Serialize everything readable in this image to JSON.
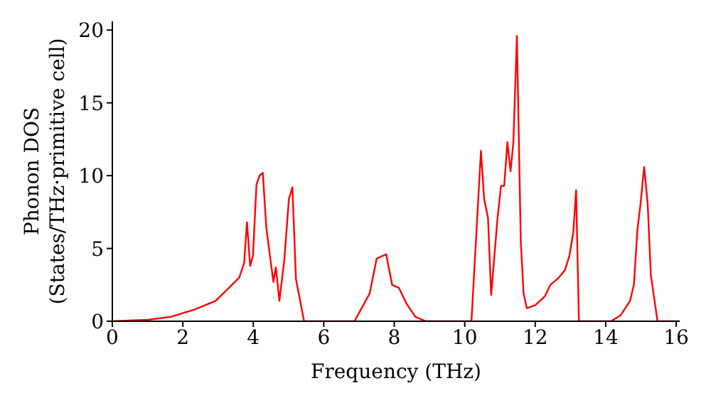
{
  "chart_data": {
    "type": "line",
    "xlabel": "Frequency (THz)",
    "ylabel": "Phonon DOS\n(States/THz·primitive cell)",
    "x": [
      0,
      1,
      1.65,
      2.33,
      2.93,
      3.27,
      3.6,
      3.74,
      3.82,
      3.91,
      3.99,
      4.09,
      4.18,
      4.27,
      4.37,
      4.57,
      4.64,
      4.74,
      4.88,
      5.01,
      5.11,
      5.21,
      5.44,
      6.87,
      7.3,
      7.5,
      7.77,
      7.94,
      8.13,
      8.35,
      8.6,
      8.9,
      10.19,
      10.46,
      10.55,
      10.66,
      10.75,
      10.93,
      11.03,
      11.12,
      11.21,
      11.3,
      11.38,
      11.48,
      11.59,
      11.67,
      11.76,
      12.0,
      12.27,
      12.43,
      12.67,
      12.84,
      12.97,
      13.08,
      13.16,
      13.24,
      14.15,
      14.42,
      14.69,
      14.8,
      14.9,
      14.99,
      15.09,
      15.19,
      15.28,
      15.47,
      16.1
    ],
    "series": [
      {
        "color": "#ff0000",
        "values": [
          0,
          0.1,
          0.3,
          0.8,
          1.4,
          2.2,
          3.0,
          4.0,
          6.8,
          3.8,
          4.5,
          9.4,
          10.0,
          10.2,
          6.4,
          2.7,
          3.7,
          1.4,
          4.2,
          8.4,
          9.2,
          2.9,
          0,
          0,
          1.9,
          4.3,
          4.6,
          2.5,
          2.3,
          1.2,
          0.3,
          0,
          0,
          11.7,
          8.4,
          7.1,
          1.8,
          7.1,
          9.3,
          9.3,
          12.3,
          10.3,
          12.3,
          19.6,
          5.5,
          1.9,
          0.9,
          1.1,
          1.7,
          2.5,
          3.0,
          3.5,
          4.5,
          6.1,
          9.0,
          0,
          0,
          0.4,
          1.4,
          2.5,
          6.3,
          8.1,
          10.6,
          8.1,
          3.2,
          0,
          0
        ]
      }
    ],
    "xlim": [
      0,
      16.1
    ],
    "xticks": [
      0,
      2,
      4,
      6,
      8,
      10,
      12,
      14,
      16
    ],
    "ylim": [
      0,
      20.6
    ],
    "yticks": [
      0,
      5,
      10,
      15,
      20
    ],
    "grid": false,
    "legend": false,
    "marker": "none",
    "line_style": "solid"
  }
}
